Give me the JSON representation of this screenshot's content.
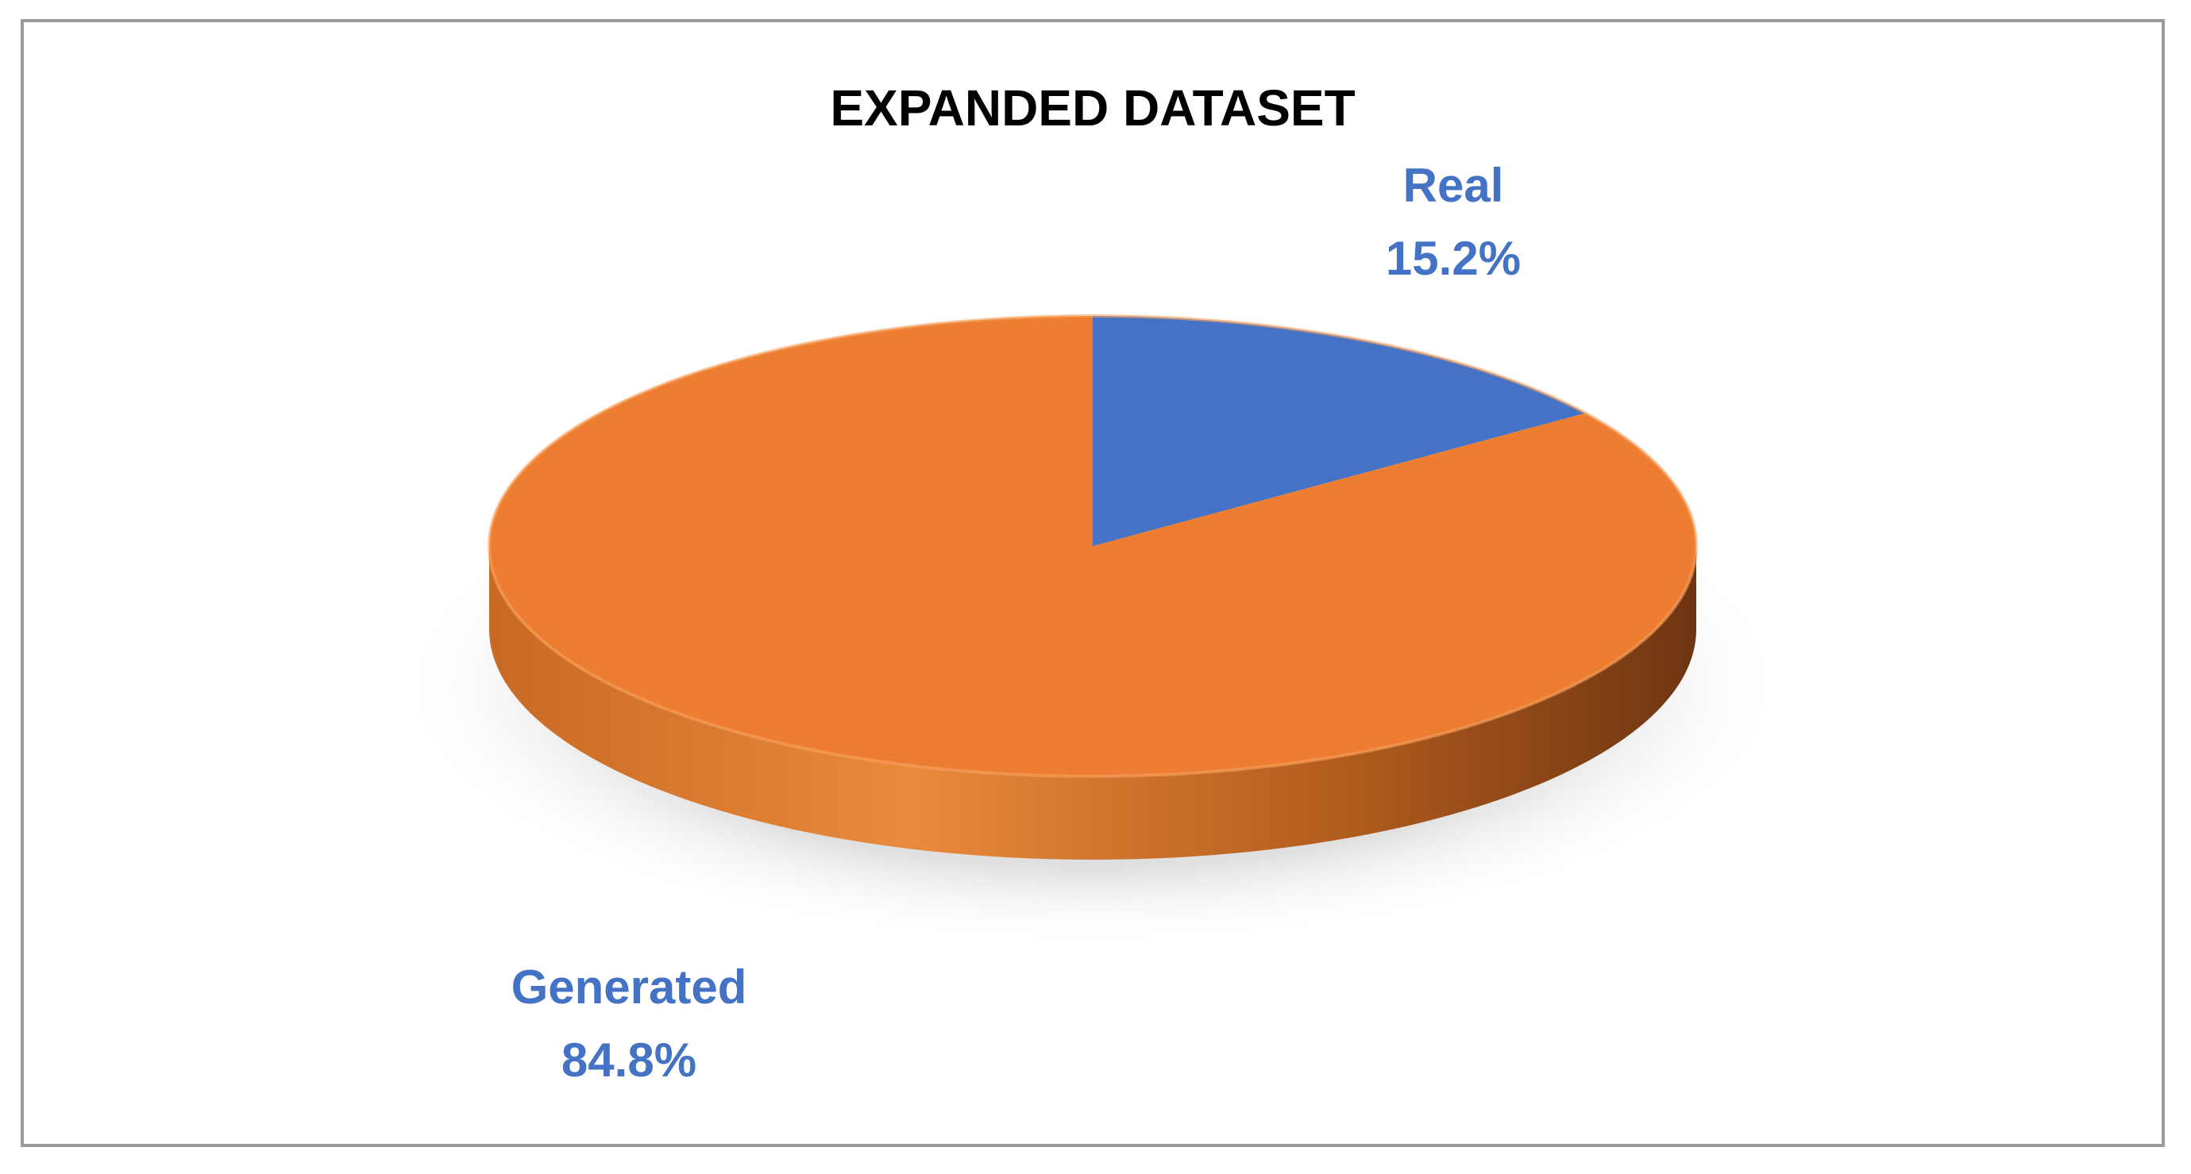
{
  "chart_data": {
    "type": "pie",
    "title": "EXPANDED DATASET",
    "slices": [
      {
        "label": "Real",
        "value": 15.2,
        "display": "15.2%",
        "color": "#4472C4"
      },
      {
        "label": "Generated",
        "value": 84.8,
        "display": "84.8%",
        "color": "#ED7D31"
      }
    ],
    "label_color": "#4472C4",
    "style": "3d",
    "legend": "none"
  }
}
